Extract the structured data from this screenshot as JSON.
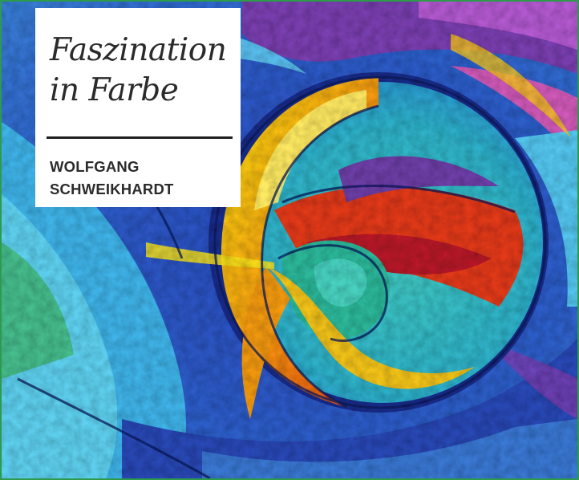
{
  "cover": {
    "title_line1": "Faszination",
    "title_line2": "in Farbe",
    "author_line1": "WOLFGANG",
    "author_line2": "SCHWEIKHARDT"
  },
  "colors": {
    "border": "#2e9a4c",
    "text": "#2b2b2b",
    "card": "#ffffff",
    "painting_dominant": [
      "#2f5fc9",
      "#3fb7e6",
      "#f2c21b",
      "#e8461f",
      "#6e3fa8",
      "#38c2a6"
    ]
  }
}
